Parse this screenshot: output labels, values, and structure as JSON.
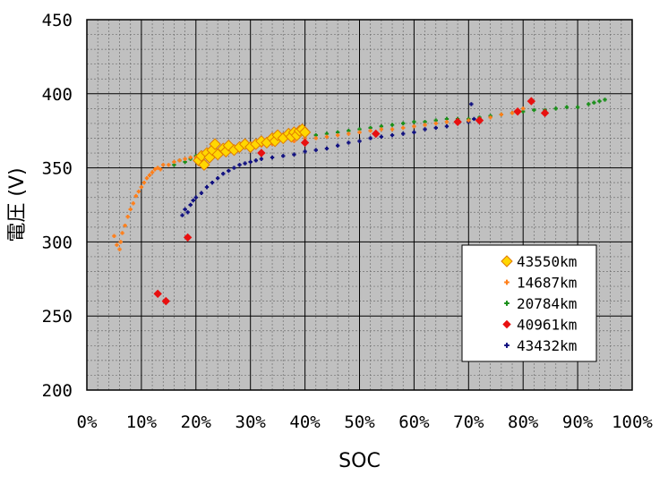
{
  "chart_data": {
    "type": "scatter",
    "xlabel": "SOC",
    "ylabel": "電圧 (V)",
    "xlim": [
      0,
      100
    ],
    "ylim": [
      200,
      450
    ],
    "x_ticks": [
      "0%",
      "10%",
      "20%",
      "30%",
      "40%",
      "50%",
      "60%",
      "70%",
      "80%",
      "90%",
      "100%"
    ],
    "y_ticks": [
      "200",
      "250",
      "300",
      "350",
      "400",
      "450"
    ],
    "grid": true,
    "legend_position": "lower-right",
    "plot_background": "#c0c0c0",
    "series": [
      {
        "name": "43550km",
        "color": "#ffd700",
        "edge": "#e07b00",
        "marker": "diamond",
        "points": [
          [
            20.5,
            355
          ],
          [
            21,
            358
          ],
          [
            21.5,
            352
          ],
          [
            22,
            360
          ],
          [
            22.5,
            357
          ],
          [
            23,
            362
          ],
          [
            23.5,
            366
          ],
          [
            24,
            359
          ],
          [
            25,
            363
          ],
          [
            25.5,
            361
          ],
          [
            26,
            365
          ],
          [
            27,
            362
          ],
          [
            28,
            364
          ],
          [
            29,
            366
          ],
          [
            30,
            364
          ],
          [
            31,
            366
          ],
          [
            32,
            368
          ],
          [
            33,
            367
          ],
          [
            34,
            370
          ],
          [
            34.5,
            368
          ],
          [
            35,
            372
          ],
          [
            36,
            370
          ],
          [
            37,
            373
          ],
          [
            37.5,
            371
          ],
          [
            38,
            374
          ],
          [
            38.5,
            372
          ],
          [
            39,
            375
          ],
          [
            39.5,
            376
          ],
          [
            40,
            374
          ]
        ]
      },
      {
        "name": "14687km",
        "color": "#ff7f1a",
        "marker": "plus",
        "points": [
          [
            5,
            304
          ],
          [
            5.5,
            298
          ],
          [
            6,
            295
          ],
          [
            6.2,
            300
          ],
          [
            6.5,
            306
          ],
          [
            7,
            311
          ],
          [
            7.5,
            317
          ],
          [
            8,
            322
          ],
          [
            8.5,
            326
          ],
          [
            9,
            331
          ],
          [
            9.5,
            334
          ],
          [
            10,
            337
          ],
          [
            10.5,
            340
          ],
          [
            11,
            343
          ],
          [
            11.5,
            345
          ],
          [
            12,
            347
          ],
          [
            12.5,
            349
          ],
          [
            13,
            350
          ],
          [
            13.5,
            349
          ],
          [
            14,
            352
          ],
          [
            15,
            352
          ],
          [
            16,
            354
          ],
          [
            17,
            355
          ],
          [
            18,
            356
          ],
          [
            19,
            357
          ],
          [
            20,
            357
          ],
          [
            22,
            358
          ],
          [
            24,
            360
          ],
          [
            26,
            362
          ],
          [
            28,
            363
          ],
          [
            30,
            364
          ],
          [
            32,
            365
          ],
          [
            34,
            366
          ],
          [
            36,
            368
          ],
          [
            38,
            368
          ],
          [
            40,
            370
          ],
          [
            42,
            370
          ],
          [
            44,
            371
          ],
          [
            46,
            372
          ],
          [
            48,
            373
          ],
          [
            50,
            374
          ],
          [
            52,
            375
          ],
          [
            54,
            376
          ],
          [
            56,
            376
          ],
          [
            58,
            377
          ],
          [
            60,
            378
          ],
          [
            62,
            379
          ],
          [
            64,
            380
          ],
          [
            66,
            381
          ],
          [
            68,
            381
          ],
          [
            70,
            382
          ],
          [
            72,
            383
          ],
          [
            74,
            384
          ],
          [
            76,
            386
          ],
          [
            78,
            387
          ],
          [
            79,
            389
          ],
          [
            80,
            390
          ]
        ]
      },
      {
        "name": "20784km",
        "color": "#1a8f1a",
        "marker": "plus",
        "points": [
          [
            16,
            352
          ],
          [
            17,
            355
          ],
          [
            18,
            354
          ],
          [
            19,
            356
          ],
          [
            20,
            358
          ],
          [
            21,
            360
          ],
          [
            22,
            357
          ],
          [
            24,
            361
          ],
          [
            26,
            362
          ],
          [
            28,
            364
          ],
          [
            30,
            365
          ],
          [
            32,
            366
          ],
          [
            34,
            368
          ],
          [
            36,
            369
          ],
          [
            38,
            371
          ],
          [
            40,
            372
          ],
          [
            42,
            372
          ],
          [
            44,
            373
          ],
          [
            46,
            374
          ],
          [
            48,
            375
          ],
          [
            50,
            376
          ],
          [
            52,
            377
          ],
          [
            54,
            378
          ],
          [
            56,
            379
          ],
          [
            58,
            380
          ],
          [
            60,
            381
          ],
          [
            62,
            381
          ],
          [
            64,
            382
          ],
          [
            66,
            383
          ],
          [
            68,
            383
          ],
          [
            70,
            383
          ],
          [
            72,
            384
          ],
          [
            74,
            385
          ],
          [
            76,
            386
          ],
          [
            78,
            387
          ],
          [
            80,
            388
          ],
          [
            82,
            389
          ],
          [
            84,
            389
          ],
          [
            86,
            390
          ],
          [
            88,
            391
          ],
          [
            90,
            391
          ],
          [
            92,
            393
          ],
          [
            93,
            394
          ],
          [
            94,
            395
          ],
          [
            95,
            396
          ]
        ]
      },
      {
        "name": "40961km",
        "color": "#e81010",
        "marker": "diamond",
        "points": [
          [
            13,
            265
          ],
          [
            14.5,
            260
          ],
          [
            18.5,
            303
          ],
          [
            32,
            360
          ],
          [
            40,
            367
          ],
          [
            53,
            373
          ],
          [
            68,
            381
          ],
          [
            72,
            382
          ],
          [
            79,
            388
          ],
          [
            81.5,
            395
          ],
          [
            84,
            387
          ]
        ]
      },
      {
        "name": "43432km",
        "color": "#101080",
        "marker": "plus",
        "points": [
          [
            17.5,
            318
          ],
          [
            18,
            322
          ],
          [
            18.5,
            320
          ],
          [
            19,
            325
          ],
          [
            19.5,
            328
          ],
          [
            20,
            330
          ],
          [
            21,
            333
          ],
          [
            22,
            337
          ],
          [
            23,
            340
          ],
          [
            24,
            343
          ],
          [
            25,
            346
          ],
          [
            26,
            348
          ],
          [
            27,
            350
          ],
          [
            28,
            352
          ],
          [
            29,
            353
          ],
          [
            30,
            354
          ],
          [
            31,
            355
          ],
          [
            32,
            356
          ],
          [
            34,
            357
          ],
          [
            36,
            358
          ],
          [
            38,
            359
          ],
          [
            40,
            361
          ],
          [
            42,
            362
          ],
          [
            44,
            363
          ],
          [
            46,
            365
          ],
          [
            48,
            367
          ],
          [
            50,
            368
          ],
          [
            52,
            370
          ],
          [
            54,
            371
          ],
          [
            56,
            372
          ],
          [
            58,
            373
          ],
          [
            60,
            374
          ],
          [
            62,
            376
          ],
          [
            64,
            377
          ],
          [
            66,
            378
          ],
          [
            68,
            380
          ],
          [
            70,
            381
          ],
          [
            70.5,
            393
          ],
          [
            71,
            383
          ]
        ]
      }
    ]
  }
}
